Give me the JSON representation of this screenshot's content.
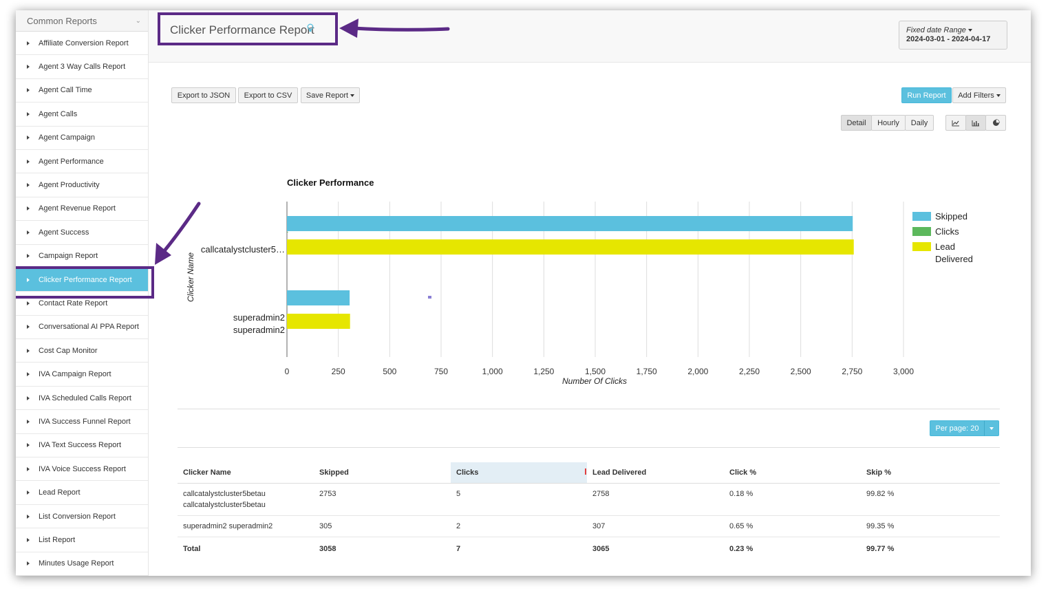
{
  "sidebar": {
    "header": "Common Reports",
    "items": [
      {
        "label": "Affiliate Conversion Report"
      },
      {
        "label": "Agent 3 Way Calls Report"
      },
      {
        "label": "Agent Call Time"
      },
      {
        "label": "Agent Calls"
      },
      {
        "label": "Agent Campaign"
      },
      {
        "label": "Agent Performance"
      },
      {
        "label": "Agent Productivity"
      },
      {
        "label": "Agent Revenue Report"
      },
      {
        "label": "Agent Success"
      },
      {
        "label": "Campaign Report"
      },
      {
        "label": "Clicker Performance Report"
      },
      {
        "label": "Contact Rate Report"
      },
      {
        "label": "Conversational AI PPA Report"
      },
      {
        "label": "Cost Cap Monitor"
      },
      {
        "label": "IVA Campaign Report"
      },
      {
        "label": "IVA Scheduled Calls Report"
      },
      {
        "label": "IVA Success Funnel Report"
      },
      {
        "label": "IVA Text Success Report"
      },
      {
        "label": "IVA Voice Success Report"
      },
      {
        "label": "Lead Report"
      },
      {
        "label": "List Conversion Report"
      },
      {
        "label": "List Report"
      },
      {
        "label": "Minutes Usage Report"
      }
    ],
    "active_index": 10
  },
  "header": {
    "title": "Clicker Performance Report",
    "date_label": "Fixed date Range",
    "date_value": "2024-03-01 - 2024-04-17"
  },
  "toolbar": {
    "export_json": "Export to JSON",
    "export_csv": "Export to CSV",
    "save_report": "Save Report",
    "run_report": "Run Report",
    "add_filters": "Add Filters",
    "detail": "Detail",
    "hourly": "Hourly",
    "daily": "Daily"
  },
  "chart_data": {
    "type": "bar",
    "orientation": "horizontal",
    "title": "Clicker Performance",
    "xlabel": "Number Of Clicks",
    "ylabel": "Clicker Name",
    "categories": [
      "callcatalystcluster5…",
      "superadmin2 superadmin2"
    ],
    "series": [
      {
        "name": "Skipped",
        "color": "#5bc0de",
        "values": [
          2753,
          305
        ]
      },
      {
        "name": "Clicks",
        "color": "#5cb85c",
        "values": [
          5,
          2
        ]
      },
      {
        "name": "Lead Delivered",
        "color": "#e6e600",
        "values": [
          2758,
          307
        ]
      }
    ],
    "xlim": [
      0,
      3000
    ],
    "xticks": [
      "0",
      "250",
      "500",
      "750",
      "1,000",
      "1,250",
      "1,500",
      "1,750",
      "2,000",
      "2,250",
      "2,500",
      "2,750",
      "3,000"
    ],
    "grid": true,
    "legend": "right"
  },
  "pagination": {
    "per_page": "Per page: 20"
  },
  "table": {
    "headers": [
      "Clicker Name",
      "Skipped",
      "Clicks",
      "Lead Delivered",
      "Click %",
      "Skip %"
    ],
    "rows": [
      [
        "callcatalystcluster5betau callcatalystcluster5betau",
        "2753",
        "5",
        "2758",
        "0.18 %",
        "99.82 %"
      ],
      [
        "superadmin2 superadmin2",
        "305",
        "2",
        "307",
        "0.65 %",
        "99.35 %"
      ]
    ],
    "total": [
      "Total",
      "3058",
      "7",
      "3065",
      "0.23 %",
      "99.77 %"
    ]
  },
  "colors": {
    "accent": "#5bc0de",
    "annotation": "#5b2a86"
  }
}
